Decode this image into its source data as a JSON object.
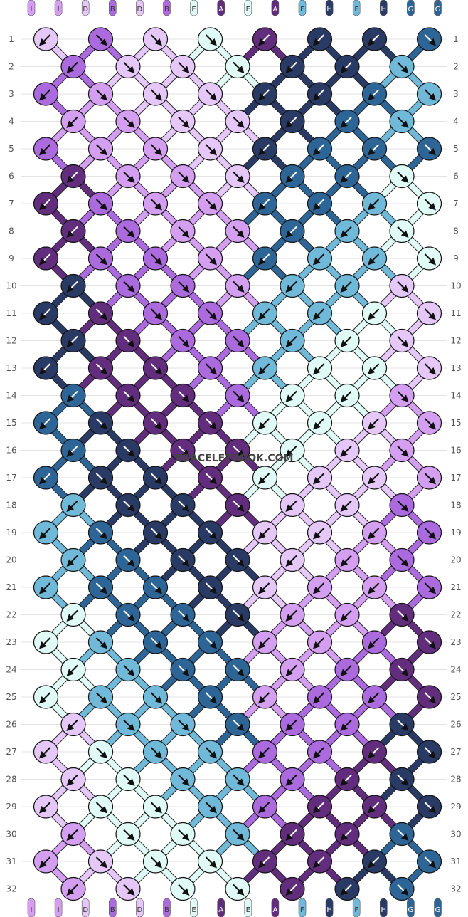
{
  "watermark": "BRACELETBOOK.COM",
  "colors": {
    "I": "#d59ff1",
    "D": "#e6c8f8",
    "B": "#ab6bdf",
    "E": "#e0faf6",
    "A": "#632d7e",
    "F": "#70b9d8",
    "H": "#293a64",
    "G": "#2e6597"
  },
  "top_labels": [
    "I",
    "I",
    "D",
    "B",
    "D",
    "B",
    "E",
    "A",
    "E",
    "A",
    "F",
    "H",
    "F",
    "H",
    "G",
    "G"
  ],
  "row_numbers": [
    "1",
    "2",
    "3",
    "4",
    "5",
    "6",
    "7",
    "8",
    "9",
    "10",
    "11",
    "12",
    "13",
    "14",
    "15",
    "16",
    "17",
    "18",
    "19",
    "20",
    "21",
    "22",
    "23",
    "24",
    "25",
    "26",
    "27",
    "28",
    "29",
    "30",
    "31",
    "32"
  ],
  "knot_colors": {
    "odd_rows": [
      [
        "D",
        "B",
        "D",
        "E",
        "A",
        "H",
        "H",
        "G"
      ],
      [
        "B",
        "I",
        "D",
        "D",
        "H",
        "H",
        "G",
        "F"
      ],
      [
        "B",
        "I",
        "I",
        "D",
        "H",
        "G",
        "G",
        "G"
      ],
      [
        "A",
        "B",
        "I",
        "I",
        "G",
        "G",
        "F",
        "E"
      ],
      [
        "A",
        "B",
        "B",
        "I",
        "G",
        "F",
        "F",
        "E"
      ],
      [
        "H",
        "A",
        "B",
        "B",
        "F",
        "F",
        "E",
        "D"
      ],
      [
        "H",
        "A",
        "A",
        "B",
        "F",
        "E",
        "E",
        "D"
      ],
      [
        "G",
        "H",
        "A",
        "A",
        "E",
        "E",
        "D",
        "I"
      ],
      [
        "G",
        "H",
        "H",
        "A",
        "E",
        "D",
        "D",
        "I"
      ],
      [
        "F",
        "G",
        "H",
        "H",
        "D",
        "D",
        "I",
        "B"
      ],
      [
        "F",
        "G",
        "G",
        "H",
        "D",
        "I",
        "I",
        "B"
      ],
      [
        "E",
        "F",
        "G",
        "G",
        "I",
        "I",
        "B",
        "A"
      ],
      [
        "E",
        "F",
        "F",
        "G",
        "I",
        "B",
        "B",
        "A"
      ],
      [
        "D",
        "E",
        "F",
        "F",
        "B",
        "B",
        "A",
        "H"
      ],
      [
        "D",
        "E",
        "E",
        "F",
        "B",
        "A",
        "A",
        "H"
      ],
      [
        "I",
        "D",
        "E",
        "E",
        "A",
        "A",
        "H",
        "G"
      ]
    ],
    "even_rows": [
      [
        "B",
        "D",
        "D",
        "E",
        "H",
        "H",
        "F"
      ],
      [
        "I",
        "I",
        "D",
        "D",
        "H",
        "G",
        "F"
      ],
      [
        "A",
        "I",
        "I",
        "D",
        "G",
        "G",
        "E"
      ],
      [
        "A",
        "B",
        "I",
        "I",
        "G",
        "F",
        "E"
      ],
      [
        "H",
        "B",
        "B",
        "I",
        "F",
        "F",
        "D"
      ],
      [
        "H",
        "A",
        "B",
        "B",
        "F",
        "E",
        "D"
      ],
      [
        "G",
        "A",
        "A",
        "B",
        "E",
        "E",
        "I"
      ],
      [
        "G",
        "H",
        "A",
        "A",
        "E",
        "D",
        "I"
      ],
      [
        "F",
        "H",
        "H",
        "A",
        "D",
        "D",
        "B"
      ],
      [
        "F",
        "G",
        "H",
        "H",
        "D",
        "I",
        "B"
      ],
      [
        "E",
        "G",
        "G",
        "H",
        "I",
        "I",
        "A"
      ],
      [
        "E",
        "F",
        "G",
        "G",
        "I",
        "B",
        "A"
      ],
      [
        "D",
        "F",
        "F",
        "G",
        "B",
        "B",
        "H"
      ],
      [
        "D",
        "E",
        "F",
        "F",
        "B",
        "A",
        "H"
      ],
      [
        "I",
        "E",
        "E",
        "F",
        "A",
        "A",
        "G"
      ],
      [
        "I",
        "D",
        "E",
        "E",
        "A",
        "H",
        "G"
      ]
    ]
  },
  "knot_types": {
    "odd_rows": [
      "left",
      "right",
      "right",
      "right",
      "left",
      "left",
      "left",
      "right"
    ],
    "even_rows": [
      "left",
      "right",
      "right",
      "right",
      "left",
      "left",
      "right"
    ]
  }
}
